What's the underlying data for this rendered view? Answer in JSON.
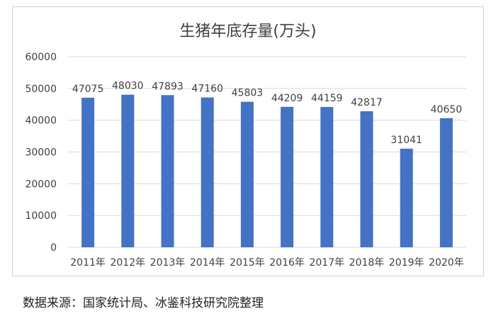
{
  "chart_data": {
    "type": "bar",
    "title": "生猪年底存量(万头)",
    "categories": [
      "2011年",
      "2012年",
      "2013年",
      "2014年",
      "2015年",
      "2016年",
      "2017年",
      "2018年",
      "2019年",
      "2020年"
    ],
    "values": [
      47075,
      48030,
      47893,
      47160,
      45803,
      44209,
      44159,
      42817,
      31041,
      40650
    ],
    "ylim": [
      0,
      60000
    ],
    "yticks": [
      0,
      10000,
      20000,
      30000,
      40000,
      50000,
      60000
    ],
    "xlabel": "",
    "ylabel": "",
    "grid": true,
    "legend": "none",
    "bar_color": "#4472c4",
    "data_labels": true
  },
  "footer": {
    "source": "数据来源：国家统计局、冰鉴科技研究院整理"
  },
  "colors": {
    "bar": "#4472c4",
    "grid": "#d9d9d9",
    "text": "#404040"
  }
}
